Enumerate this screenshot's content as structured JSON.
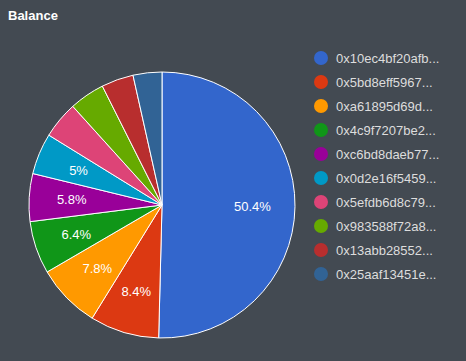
{
  "chart_data": {
    "type": "pie",
    "title": "Balance",
    "categories": [
      "0x10ec4bf20afb...",
      "0x5bd8eff5967...",
      "0xa61895d69d...",
      "0x4c9f7207be2...",
      "0xc6bd8daeb77...",
      "0x0d2e16f5459...",
      "0x5efdb6d8c79...",
      "0x983588f72a8...",
      "0x13abb28552...",
      "0x25aaf13451e..."
    ],
    "values": [
      50.4,
      8.4,
      7.8,
      6.4,
      5.8,
      5,
      4.5,
      4.3,
      3.9,
      3.5
    ],
    "value_labels": [
      "50.4%",
      "8.4%",
      "7.8%",
      "6.4%",
      "5.8%",
      "5%",
      null,
      null,
      null,
      null
    ],
    "data_labels": true,
    "colors": [
      "#3366cc",
      "#dc3912",
      "#ff9900",
      "#109618",
      "#990099",
      "#0099c6",
      "#dd4477",
      "#66aa00",
      "#b82e2e",
      "#316395"
    ],
    "legend": "right"
  }
}
